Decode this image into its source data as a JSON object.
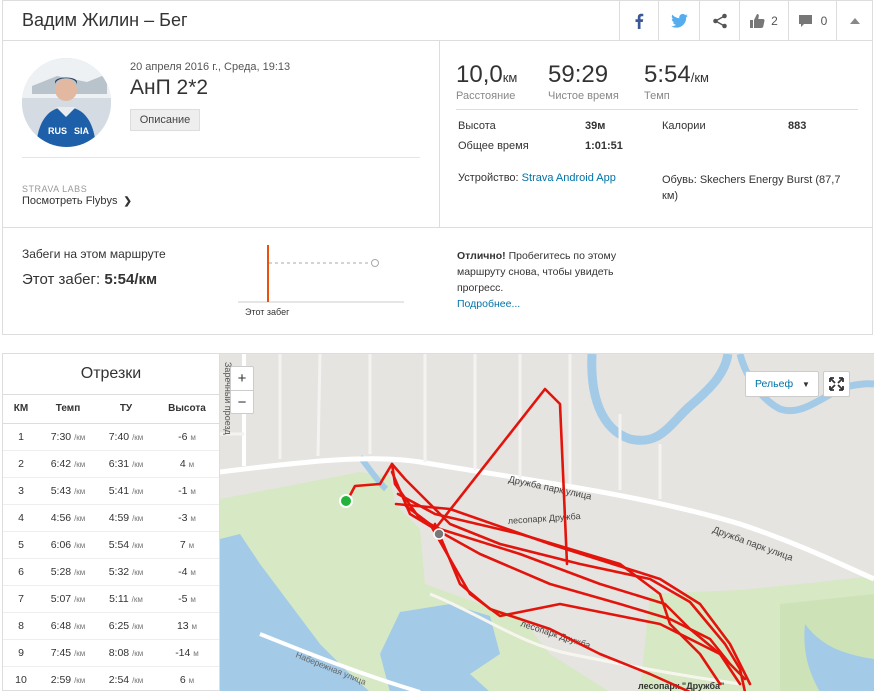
{
  "header": {
    "title": "Вадим Жилин – Бег",
    "kudos_count": "2",
    "comments_count": "0",
    "facebook_icon": "facebook-icon",
    "twitter_icon": "twitter-icon",
    "share_icon": "share-icon",
    "kudos_icon": "thumbs-up-icon",
    "comment_icon": "comment-icon",
    "collapse_icon": "chevron-up-icon",
    "facebook_color": "#3b5998",
    "twitter_color": "#55acee"
  },
  "activity": {
    "date": "20 апреля 2016 г., Среда, 19:13",
    "name": "АнП 2*2",
    "description_button": "Описание",
    "labs_label": "STRAVA LABS",
    "flyby_link": "Посмотреть Flybys"
  },
  "stats": {
    "distance_value": "10,0",
    "distance_unit": "км",
    "distance_label": "Расстояние",
    "moving_time_value": "59:29",
    "moving_time_label": "Чистое время",
    "pace_value": "5:54",
    "pace_unit": "/км",
    "pace_label": "Темп",
    "elevation_label": "Высота",
    "elevation_value": "39м",
    "elapsed_label": "Общее время",
    "elapsed_value": "1:01:51",
    "calories_label": "Калории",
    "calories_value": "883",
    "device_label": "Устройство:",
    "device_value": "Strava Android App",
    "shoes_label": "Обувь:",
    "shoes_value": "Skechers Energy Burst (87,7 км)"
  },
  "route": {
    "title": "Забеги на этом маршруте",
    "this_run_label": "Этот забег:",
    "this_run_value": "5:54/км",
    "chart_label": "Этот забег",
    "great_bold": "Отлично!",
    "great_text": " Пробегитесь по этому маршруту снова, чтобы увидеть прогресс.",
    "more_link": "Подробнее...",
    "accent": "#e8520c"
  },
  "splits": {
    "title": "Отрезки",
    "headers": [
      "КМ",
      "Темп",
      "ТУ",
      "Высота"
    ],
    "pace_unit": "/км",
    "elev_unit": "м",
    "rows": [
      {
        "km": "1",
        "pace": "7:30",
        "gap": "7:40",
        "elev": "-6"
      },
      {
        "km": "2",
        "pace": "6:42",
        "gap": "6:31",
        "elev": "4"
      },
      {
        "km": "3",
        "pace": "5:43",
        "gap": "5:41",
        "elev": "-1"
      },
      {
        "km": "4",
        "pace": "4:56",
        "gap": "4:59",
        "elev": "-3"
      },
      {
        "km": "5",
        "pace": "6:06",
        "gap": "5:54",
        "elev": "7"
      },
      {
        "km": "6",
        "pace": "5:28",
        "gap": "5:32",
        "elev": "-4"
      },
      {
        "km": "7",
        "pace": "5:07",
        "gap": "5:11",
        "elev": "-5"
      },
      {
        "km": "8",
        "pace": "6:48",
        "gap": "6:25",
        "elev": "13"
      },
      {
        "km": "9",
        "pace": "7:45",
        "gap": "8:08",
        "elev": "-14"
      },
      {
        "km": "10",
        "pace": "2:59",
        "gap": "2:54",
        "elev": "6"
      }
    ]
  },
  "map": {
    "zoom_in": "+",
    "zoom_out": "−",
    "layer_select": "Рельеф",
    "fullscreen_icon": "fullscreen-icon",
    "street_labels": [
      "Заречный проезд",
      "Дружба парк улица",
      "Дружба парк улица",
      "лесопарк Дружба",
      "лесопарк Дружба",
      "Набережная улица",
      "лесопарк \"Дружба\""
    ],
    "route_color": "#e3140c",
    "water_color": "#a3cbe8",
    "park_color": "#d6e8c4"
  }
}
